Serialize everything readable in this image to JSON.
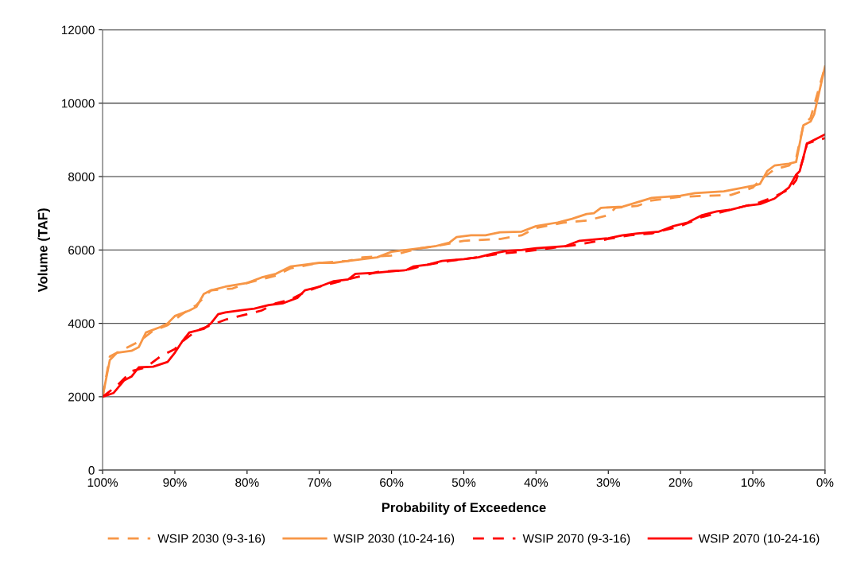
{
  "chart_data": {
    "type": "line",
    "xlabel": "Probability of Exceedence",
    "ylabel": "Volume (TAF)",
    "xlim": [
      100,
      0
    ],
    "xticks": [
      {
        "value": 100,
        "label": "100%"
      },
      {
        "value": 90,
        "label": "90%"
      },
      {
        "value": 80,
        "label": "80%"
      },
      {
        "value": 70,
        "label": "70%"
      },
      {
        "value": 60,
        "label": "60%"
      },
      {
        "value": 50,
        "label": "50%"
      },
      {
        "value": 40,
        "label": "40%"
      },
      {
        "value": 30,
        "label": "30%"
      },
      {
        "value": 20,
        "label": "20%"
      },
      {
        "value": 10,
        "label": "10%"
      },
      {
        "value": 0,
        "label": "0%"
      }
    ],
    "ylim": [
      0,
      12000
    ],
    "yticks": [
      0,
      2000,
      4000,
      6000,
      8000,
      10000,
      12000
    ],
    "grid": "y",
    "legend": "bottom",
    "marker": "none",
    "series": [
      {
        "name": "WSIP 2030 (9-3-16)",
        "color": "#f79646",
        "line_style": "dashed",
        "x": [
          100,
          99,
          97,
          95,
          93,
          91,
          89,
          87,
          85,
          82,
          80,
          76,
          74,
          70,
          66,
          64,
          60,
          56,
          54,
          50,
          45,
          42,
          40,
          36,
          33,
          30,
          29,
          26,
          24,
          20,
          16,
          13,
          10,
          9,
          7,
          5,
          4,
          3,
          2,
          0
        ],
        "values": [
          2000,
          3100,
          3300,
          3500,
          3800,
          3950,
          4250,
          4500,
          4900,
          4950,
          5100,
          5300,
          5500,
          5650,
          5700,
          5800,
          5850,
          6050,
          6100,
          6250,
          6300,
          6400,
          6600,
          6750,
          6800,
          6950,
          7150,
          7200,
          7350,
          7450,
          7480,
          7500,
          7700,
          7900,
          8200,
          8300,
          8500,
          9400,
          9600,
          11000
        ]
      },
      {
        "name": "WSIP 2030 (10-24-16)",
        "color": "#f79646",
        "line_style": "solid",
        "x": [
          100,
          99,
          98,
          96,
          95,
          94,
          92,
          91,
          90,
          88,
          87,
          86,
          85,
          83,
          80,
          78,
          76,
          74,
          72,
          70,
          68,
          66,
          64,
          62,
          60,
          58,
          56,
          54,
          52,
          51,
          49,
          47,
          45,
          42,
          40,
          37,
          35,
          33,
          32,
          31,
          28,
          26,
          24,
          20,
          18,
          14,
          10,
          9,
          8,
          7,
          5,
          4,
          3,
          2,
          1.5,
          0
        ],
        "values": [
          2000,
          3000,
          3200,
          3250,
          3350,
          3750,
          3900,
          4000,
          4200,
          4350,
          4450,
          4800,
          4900,
          5000,
          5100,
          5250,
          5350,
          5550,
          5600,
          5650,
          5650,
          5700,
          5750,
          5800,
          5950,
          6000,
          6050,
          6100,
          6200,
          6350,
          6400,
          6400,
          6480,
          6500,
          6650,
          6750,
          6850,
          6980,
          7000,
          7150,
          7180,
          7300,
          7420,
          7480,
          7550,
          7600,
          7750,
          7800,
          8150,
          8300,
          8350,
          8400,
          9400,
          9500,
          9700,
          11000
        ]
      },
      {
        "name": "WSIP 2070 (9-3-16)",
        "color": "#ff0000",
        "line_style": "dashed",
        "x": [
          100,
          98,
          96,
          94,
          92,
          90,
          89,
          87,
          85,
          83,
          80,
          78,
          76,
          74,
          72,
          70,
          67,
          65,
          62,
          58,
          55,
          52,
          48,
          45,
          42,
          38,
          34,
          30,
          27,
          24,
          20,
          17,
          14,
          11,
          9,
          7,
          5,
          4,
          3,
          2.5,
          0
        ],
        "values": [
          2000,
          2300,
          2700,
          2800,
          3100,
          3300,
          3500,
          3800,
          3950,
          4100,
          4250,
          4350,
          4550,
          4650,
          4850,
          5000,
          5150,
          5250,
          5400,
          5450,
          5600,
          5700,
          5800,
          5900,
          5950,
          6050,
          6150,
          6300,
          6400,
          6450,
          6650,
          6900,
          7050,
          7200,
          7300,
          7450,
          7650,
          7900,
          8500,
          8900,
          9050
        ]
      },
      {
        "name": "WSIP 2070 (10-24-16)",
        "color": "#ff0000",
        "line_style": "solid",
        "x": [
          100,
          98.5,
          97,
          96,
          95,
          93,
          91,
          90,
          89,
          88,
          86,
          85,
          84,
          83,
          81,
          79,
          77,
          75,
          73,
          72,
          70,
          68,
          66,
          65,
          62,
          60,
          58,
          57,
          55,
          53,
          50,
          48,
          46,
          44,
          42,
          40,
          36,
          34,
          30,
          28,
          26,
          23,
          21,
          19,
          17,
          15,
          13,
          11,
          9,
          7,
          5,
          4,
          3.5,
          2.5,
          0
        ],
        "values": [
          2000,
          2100,
          2450,
          2550,
          2800,
          2820,
          2950,
          3200,
          3500,
          3750,
          3850,
          4000,
          4250,
          4300,
          4350,
          4400,
          4500,
          4550,
          4700,
          4900,
          5000,
          5150,
          5200,
          5350,
          5380,
          5420,
          5450,
          5550,
          5600,
          5700,
          5750,
          5800,
          5900,
          5980,
          6000,
          6050,
          6100,
          6250,
          6320,
          6400,
          6450,
          6500,
          6650,
          6750,
          6950,
          7050,
          7100,
          7200,
          7250,
          7400,
          7700,
          8050,
          8150,
          8900,
          9150
        ]
      }
    ]
  }
}
